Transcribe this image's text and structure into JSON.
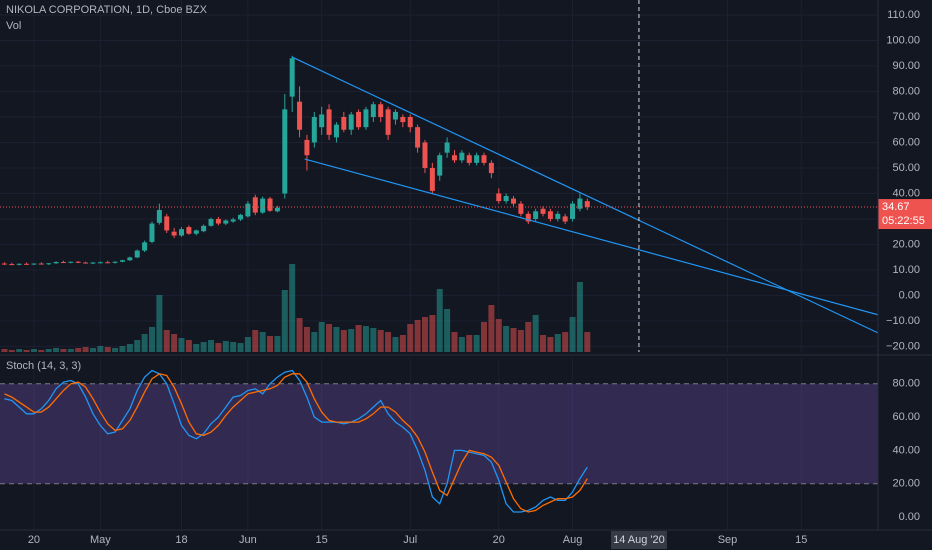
{
  "chart_data": [
    {
      "type": "candlestick",
      "title": "NIKOLA CORPORATION, 1D, Cboe BZX",
      "volume_label": "Vol",
      "open": [
        12.5,
        12.3,
        12.1,
        12.4,
        12.2,
        12.5,
        12.3,
        12.6,
        13.1,
        12.9,
        13.2,
        12.9,
        12.7,
        12.9,
        13.0,
        12.8,
        13.2,
        13.8,
        14.9,
        17.6,
        21.0,
        28.5,
        31.0,
        25.0,
        23.5,
        26.8,
        24.2,
        25.2,
        27.3,
        30.0,
        28.2,
        29.0,
        29.8,
        31.0,
        38.5,
        32.5,
        38.0,
        33.0,
        40,
        78,
        76,
        61,
        60,
        66,
        73,
        62,
        70,
        65,
        72,
        66,
        70,
        75,
        73,
        69,
        70,
        70,
        66,
        60,
        50,
        47,
        56,
        55,
        53,
        55,
        52,
        55,
        52,
        40,
        37,
        38,
        36,
        32,
        30,
        34,
        33,
        30,
        31,
        30,
        34,
        37
      ],
      "high": [
        13.0,
        12.8,
        12.6,
        12.9,
        12.6,
        13.0,
        12.7,
        13.4,
        13.6,
        13.3,
        13.5,
        13.2,
        13.1,
        13.3,
        13.6,
        13.4,
        14.0,
        15.2,
        18.0,
        21.5,
        29.0,
        36.0,
        32.0,
        26.5,
        26.8,
        27.5,
        25.8,
        27.8,
        30.5,
        30.8,
        29.8,
        30.5,
        32.0,
        37.0,
        39.5,
        38.8,
        38.6,
        35.2,
        79,
        94,
        82,
        63,
        72,
        74,
        75,
        68,
        72,
        72,
        73,
        74,
        76,
        76,
        74,
        73,
        71,
        71,
        67,
        61,
        52,
        56,
        62,
        57,
        57,
        56,
        56,
        56,
        53,
        42,
        40,
        39,
        37,
        33,
        34,
        35,
        34,
        33,
        32,
        37,
        40,
        38
      ],
      "low": [
        12.0,
        11.9,
        11.8,
        12.1,
        11.9,
        12.2,
        12.0,
        12.4,
        12.8,
        12.6,
        12.7,
        12.5,
        12.3,
        12.6,
        12.7,
        12.5,
        13.0,
        13.5,
        14.6,
        17.0,
        20.5,
        27.8,
        24.5,
        22.5,
        23.0,
        23.8,
        23.6,
        24.8,
        27.0,
        27.5,
        27.6,
        28.5,
        29.2,
        30.5,
        31.5,
        32.0,
        32.8,
        32.6,
        38,
        72,
        62,
        49,
        58,
        63,
        61,
        60,
        64,
        63,
        65,
        65,
        68,
        68,
        61,
        67,
        66,
        64,
        56,
        48,
        40,
        45,
        54,
        52,
        52,
        51,
        51,
        51,
        46,
        36,
        36,
        35,
        31,
        28,
        29,
        31,
        29,
        29,
        28,
        29,
        33,
        33.5
      ],
      "close": [
        12.3,
        12.1,
        12.4,
        12.2,
        12.5,
        12.3,
        12.6,
        13.1,
        12.9,
        13.2,
        12.9,
        12.7,
        12.9,
        13.0,
        12.8,
        13.2,
        13.8,
        14.9,
        17.6,
        20.8,
        28.2,
        33.5,
        25.5,
        23.5,
        26.0,
        24.2,
        25.5,
        27.3,
        30.0,
        28.2,
        29.4,
        29.8,
        31.6,
        36.0,
        32.5,
        38.0,
        33.2,
        34.4,
        73,
        93,
        65,
        55,
        70,
        71,
        63,
        67,
        65,
        71,
        66,
        73,
        75,
        70,
        63,
        72,
        68,
        66,
        58,
        50,
        41,
        55,
        60,
        53,
        56,
        52,
        55,
        52,
        48,
        37,
        39,
        36,
        32,
        29,
        33,
        32,
        30,
        32,
        29,
        36,
        38,
        34.67
      ],
      "volume": [
        3,
        2,
        3,
        2,
        3,
        2,
        3,
        4,
        3,
        3,
        4,
        5,
        4,
        6,
        5,
        4,
        6,
        8,
        12,
        18,
        25,
        57,
        22,
        18,
        14,
        12,
        8,
        10,
        12,
        9,
        11,
        10,
        9,
        15,
        22,
        20,
        16,
        16,
        62,
        88,
        34,
        25,
        20,
        30,
        28,
        25,
        22,
        23,
        27,
        26,
        24,
        22,
        20,
        15,
        17,
        28,
        32,
        35,
        37,
        63,
        43,
        20,
        15,
        17,
        17,
        30,
        47,
        33,
        26,
        24,
        22,
        30,
        37,
        17,
        15,
        18,
        20,
        35,
        70,
        20
      ],
      "up_color": "#26a69a",
      "down_color": "#ef5350",
      "xlim": [
        -0.6,
        118.4
      ],
      "xticks": [
        {
          "value": 4,
          "label": "20"
        },
        {
          "value": 13,
          "label": "May"
        },
        {
          "value": 24,
          "label": "18"
        },
        {
          "value": 33,
          "label": "Jun"
        },
        {
          "value": 43,
          "label": "15"
        },
        {
          "value": 55,
          "label": "Jul"
        },
        {
          "value": 67,
          "label": "20"
        },
        {
          "value": 77,
          "label": "Aug"
        },
        {
          "value": 98,
          "label": "Sep"
        },
        {
          "value": 108,
          "label": "15"
        }
      ],
      "ylim": [
        -22.2,
        115.9
      ],
      "yticks": [
        {
          "value": -20,
          "label": "−20.00"
        },
        {
          "value": -10,
          "label": "−10.00"
        },
        {
          "value": 0,
          "label": "0.00"
        },
        {
          "value": 10,
          "label": "10.00"
        },
        {
          "value": 20,
          "label": "20.00"
        },
        {
          "value": 30,
          "label": "30.00"
        },
        {
          "value": 40,
          "label": "40.00"
        },
        {
          "value": 50,
          "label": "50.00"
        },
        {
          "value": 60,
          "label": "60.00"
        },
        {
          "value": 70,
          "label": "70.00"
        },
        {
          "value": 80,
          "label": "80.00"
        },
        {
          "value": 90,
          "label": "90.00"
        },
        {
          "value": 100,
          "label": "100.00"
        },
        {
          "value": 110,
          "label": "110.00"
        }
      ],
      "volume_lim": [
        0,
        100
      ],
      "last_price": 34.67,
      "countdown": "05:22:55",
      "cursor": {
        "value": 86,
        "label": "14 Aug '20"
      },
      "trendline_color": "#2196f3",
      "trendlines": [
        {
          "x": [
            39,
            118.4
          ],
          "y": [
            93.5,
            -14.7
          ]
        },
        {
          "x": [
            40.7,
            118.4
          ],
          "y": [
            53.5,
            -7.6
          ]
        }
      ]
    },
    {
      "type": "line",
      "title": "Stoch (14, 3, 3)",
      "xlim": [
        -0.6,
        118.4
      ],
      "ylim": [
        -7.8,
        95.5
      ],
      "yticks": [
        {
          "value": 0,
          "label": "0.00"
        },
        {
          "value": 20,
          "label": "20.00"
        },
        {
          "value": 40,
          "label": "40.00"
        },
        {
          "value": 60,
          "label": "60.00"
        },
        {
          "value": 80,
          "label": "80.00"
        }
      ],
      "band": [
        20,
        80
      ],
      "band_color": "#7e57c2",
      "series": [
        {
          "color": "#2196f3",
          "values": [
            71,
            70,
            66,
            62,
            62,
            65,
            70,
            77,
            81,
            82,
            80,
            72,
            62,
            55,
            50,
            51,
            58,
            65,
            76,
            84,
            88,
            86,
            80,
            68,
            55,
            49,
            47,
            50,
            56,
            60,
            66,
            72,
            73,
            76,
            77,
            74,
            80,
            84,
            87,
            88,
            82,
            72,
            60,
            57,
            57,
            57,
            56,
            57,
            59,
            62,
            66,
            70,
            62,
            57,
            54,
            50,
            40,
            28,
            12,
            8,
            20,
            40,
            40,
            39,
            38,
            37,
            33,
            22,
            8,
            3,
            3,
            4,
            6,
            10,
            12,
            10,
            10,
            15,
            23,
            30
          ]
        },
        {
          "color": "#ff6d00",
          "values": [
            74,
            72,
            69,
            66,
            63,
            63,
            66,
            71,
            76,
            80,
            81,
            78,
            71,
            63,
            56,
            52,
            53,
            58,
            66,
            75,
            83,
            86,
            85,
            78,
            68,
            57,
            50,
            49,
            51,
            55,
            61,
            66,
            70,
            74,
            75,
            76,
            77,
            79,
            84,
            86,
            86,
            81,
            71,
            63,
            58,
            57,
            57,
            57,
            57,
            59,
            62,
            66,
            66,
            63,
            58,
            54,
            48,
            39,
            27,
            16,
            13,
            23,
            33,
            40,
            39,
            38,
            36,
            31,
            21,
            11,
            5,
            3,
            4,
            7,
            9,
            11,
            11,
            12,
            16,
            23
          ]
        }
      ]
    }
  ]
}
